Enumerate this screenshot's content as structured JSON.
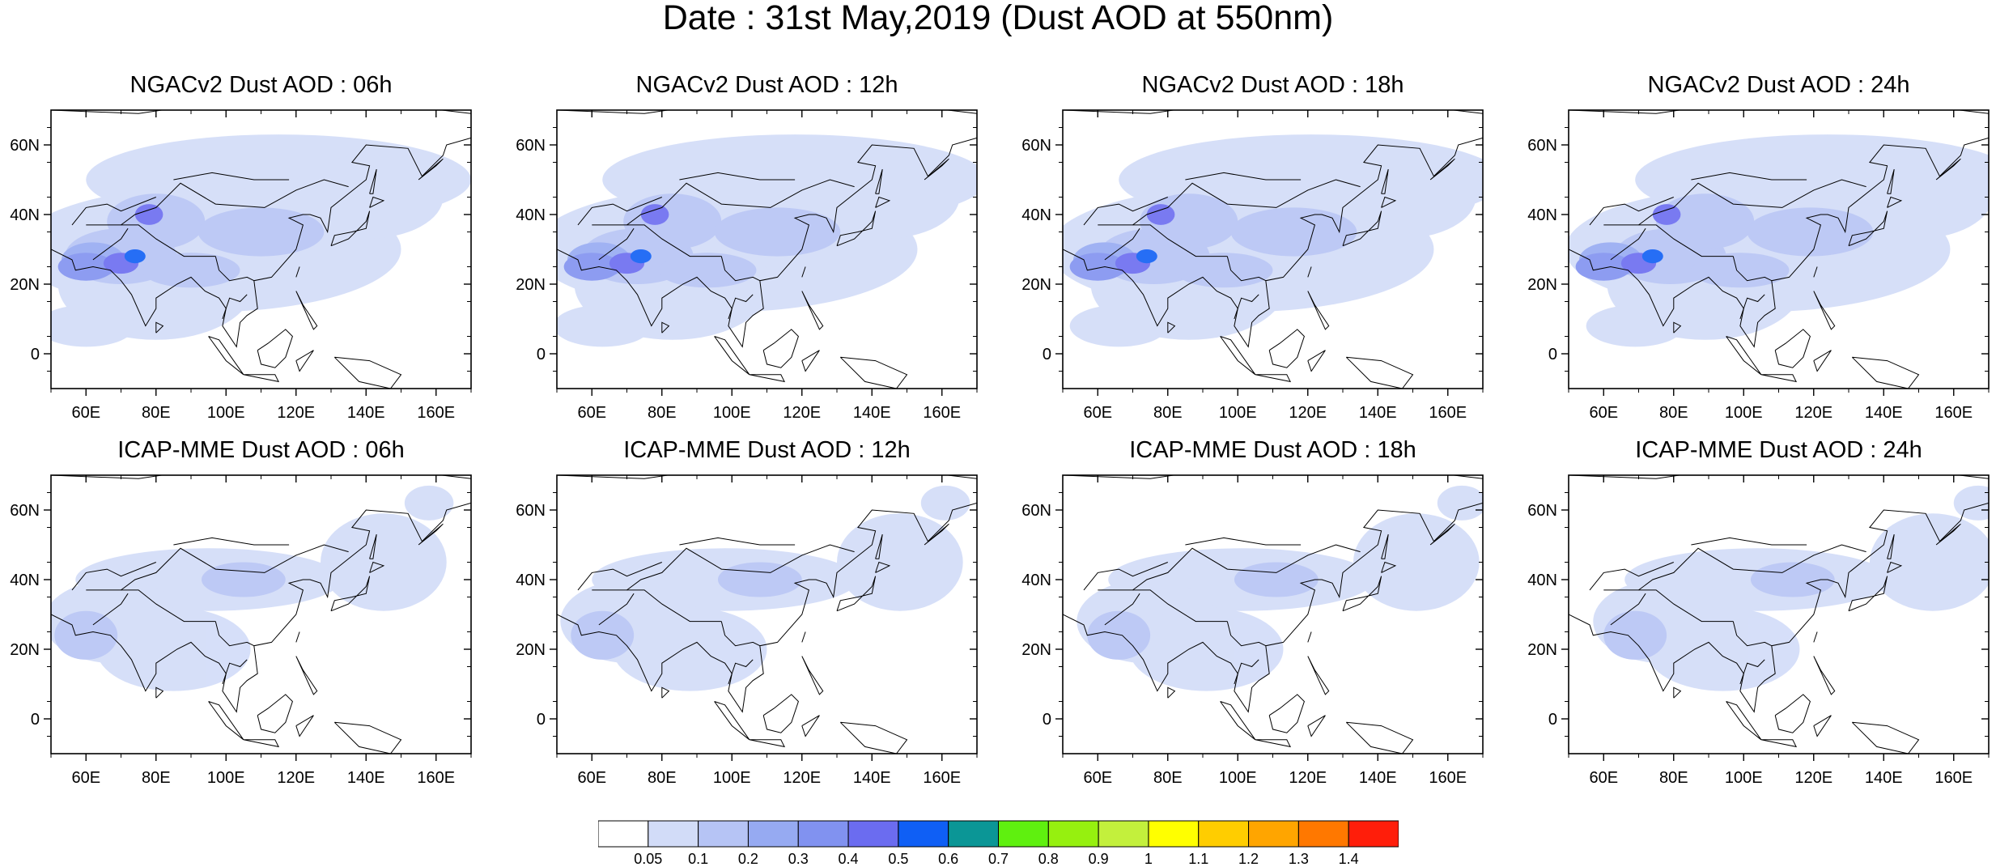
{
  "title": "Date : 31st May,2019 (Dust AOD at 550nm)",
  "map_extent": {
    "lon": [
      50,
      170
    ],
    "lat": [
      -10,
      70
    ]
  },
  "axes": {
    "lat_ticks": [
      {
        "value": 60,
        "label": "60N"
      },
      {
        "value": 40,
        "label": "40N"
      },
      {
        "value": 20,
        "label": "20N"
      },
      {
        "value": 0,
        "label": "0"
      }
    ],
    "lon_ticks": [
      {
        "value": 60,
        "label": "60E"
      },
      {
        "value": 80,
        "label": "80E"
      },
      {
        "value": 100,
        "label": "100E"
      },
      {
        "value": 120,
        "label": "120E"
      },
      {
        "value": 140,
        "label": "140E"
      },
      {
        "value": 160,
        "label": "160E"
      }
    ]
  },
  "panels": [
    {
      "title": "NGACv2 Dust AOD : 06h",
      "model": "NGACv2",
      "hour": "06h"
    },
    {
      "title": "NGACv2 Dust AOD : 12h",
      "model": "NGACv2",
      "hour": "12h"
    },
    {
      "title": "NGACv2 Dust AOD : 18h",
      "model": "NGACv2",
      "hour": "18h"
    },
    {
      "title": "NGACv2 Dust AOD : 24h",
      "model": "NGACv2",
      "hour": "24h"
    },
    {
      "title": "ICAP-MME Dust AOD : 06h",
      "model": "ICAP-MME",
      "hour": "06h"
    },
    {
      "title": "ICAP-MME Dust AOD : 12h",
      "model": "ICAP-MME",
      "hour": "12h"
    },
    {
      "title": "ICAP-MME Dust AOD : 18h",
      "model": "ICAP-MME",
      "hour": "18h"
    },
    {
      "title": "ICAP-MME Dust AOD : 24h",
      "model": "ICAP-MME",
      "hour": "24h"
    }
  ],
  "colorbar": {
    "colors": [
      "#ffffff",
      "#d2dcf8",
      "#b6c4f5",
      "#96aaf2",
      "#8192f0",
      "#6b6cf0",
      "#0f5ff5",
      "#0b9696",
      "#5ff00f",
      "#96f00f",
      "#c3f03c",
      "#ffff00",
      "#ffcd00",
      "#ffa500",
      "#ff7800",
      "#ff1e0a"
    ],
    "labels": [
      "0.05",
      "0.1",
      "0.2",
      "0.3",
      "0.4",
      "0.5",
      "0.6",
      "0.7",
      "0.8",
      "0.9",
      "1",
      "1.1",
      "1.2",
      "1.3",
      "1.4"
    ]
  }
}
